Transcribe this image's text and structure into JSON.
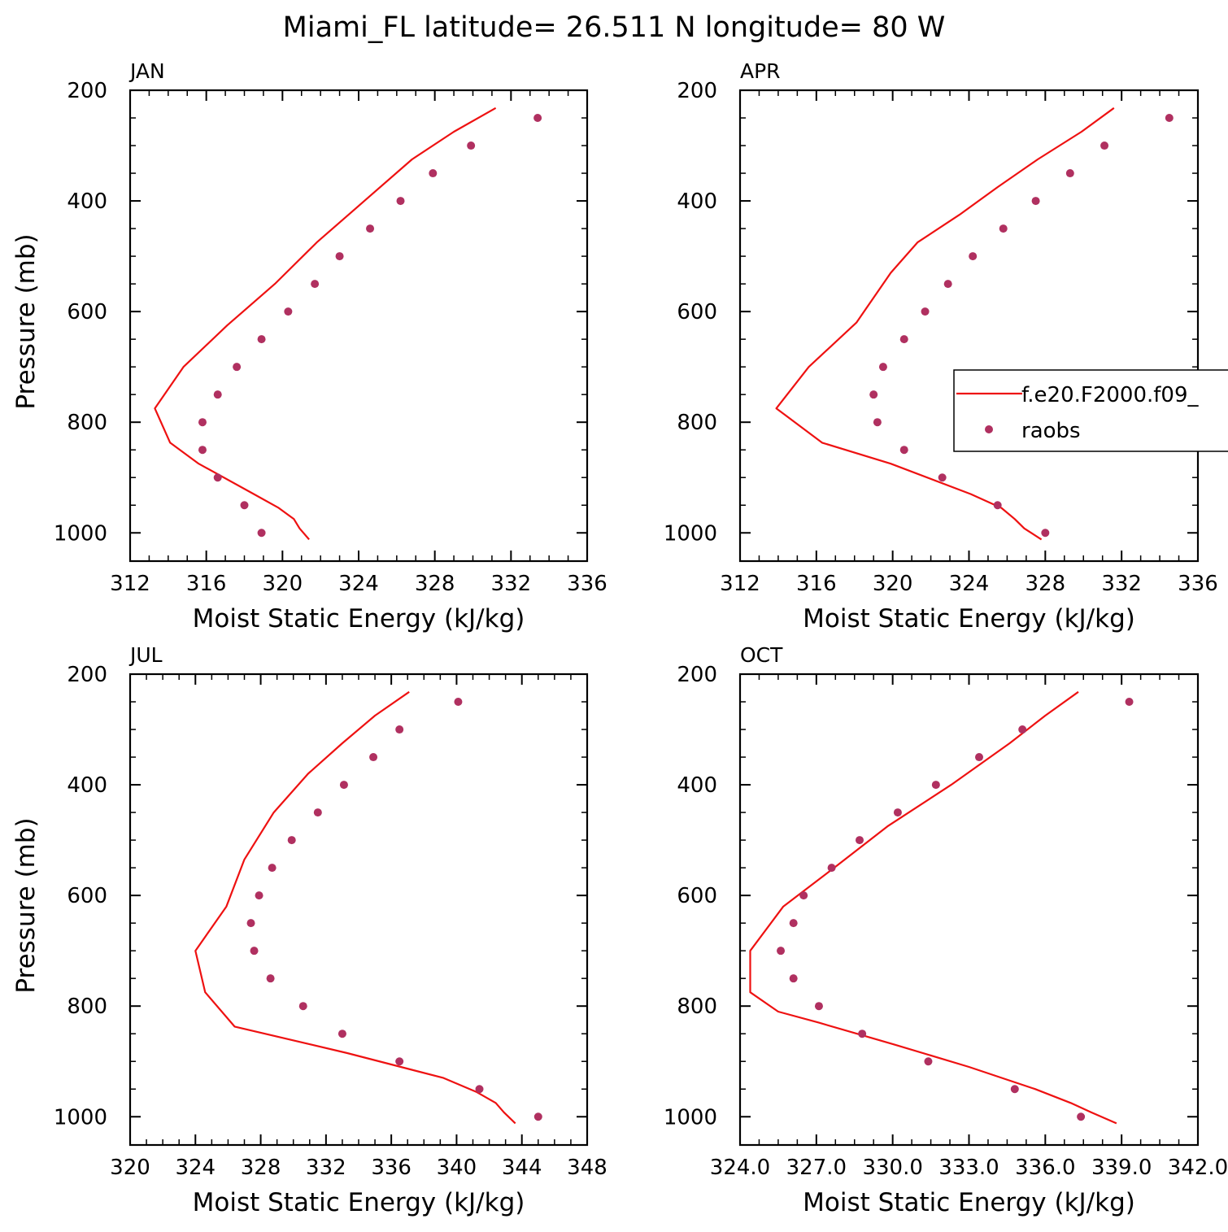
{
  "figure": {
    "title": "Miami_FL  latitude= 26.511 N longitude= 80 W"
  },
  "legend": {
    "model_label": "f.e20.F2000.f09_",
    "obs_label": "raobs"
  },
  "colors": {
    "model_line": "#ee1111",
    "obs_marker": "#b03060",
    "axes": "#000000"
  },
  "chart_data": [
    {
      "type": "line",
      "panel_label": "JAN",
      "xlabel": "Moist Static Energy (kJ/kg)",
      "ylabel": "Pressure (mb)",
      "xlim": [
        312,
        336
      ],
      "ylim": [
        1000,
        200
      ],
      "xticks": [
        "312",
        "316",
        "320",
        "324",
        "328",
        "332",
        "336"
      ],
      "yticks": [
        "200",
        "400",
        "600",
        "800",
        "1000"
      ],
      "series": [
        {
          "name": "f.e20.F2000.f09_",
          "kind": "line",
          "points": [
            [
              331.2,
              232
            ],
            [
              329.0,
              275
            ],
            [
              326.8,
              325
            ],
            [
              324.3,
              400
            ],
            [
              321.8,
              475
            ],
            [
              319.6,
              550
            ],
            [
              317.1,
              625
            ],
            [
              314.8,
              700
            ],
            [
              313.3,
              775
            ],
            [
              314.1,
              837
            ],
            [
              315.6,
              875
            ],
            [
              318.5,
              930
            ],
            [
              319.8,
              955
            ],
            [
              320.6,
              975
            ],
            [
              320.9,
              992
            ],
            [
              321.4,
              1012
            ]
          ]
        },
        {
          "name": "raobs",
          "kind": "scatter",
          "points": [
            [
              333.4,
              250
            ],
            [
              329.9,
              300
            ],
            [
              327.9,
              350
            ],
            [
              326.2,
              400
            ],
            [
              324.6,
              450
            ],
            [
              323.0,
              500
            ],
            [
              321.7,
              550
            ],
            [
              320.3,
              600
            ],
            [
              318.9,
              650
            ],
            [
              317.6,
              700
            ],
            [
              316.6,
              750
            ],
            [
              315.8,
              800
            ],
            [
              315.8,
              850
            ],
            [
              316.6,
              900
            ],
            [
              318.0,
              950
            ],
            [
              318.9,
              1000
            ]
          ]
        }
      ]
    },
    {
      "type": "line",
      "panel_label": "APR",
      "xlabel": "Moist Static Energy (kJ/kg)",
      "ylabel": "",
      "xlim": [
        312,
        336
      ],
      "ylim": [
        1000,
        200
      ],
      "xticks": [
        "312",
        "316",
        "320",
        "324",
        "328",
        "332",
        "336"
      ],
      "yticks": [
        "200",
        "400",
        "600",
        "800",
        "1000"
      ],
      "series": [
        {
          "name": "f.e20.F2000.f09_",
          "kind": "line",
          "points": [
            [
              331.6,
              232
            ],
            [
              329.9,
              275
            ],
            [
              327.6,
              325
            ],
            [
              325.5,
              375
            ],
            [
              323.5,
              425
            ],
            [
              321.3,
              475
            ],
            [
              319.9,
              530
            ],
            [
              318.1,
              620
            ],
            [
              315.6,
              700
            ],
            [
              313.9,
              775
            ],
            [
              316.3,
              837
            ],
            [
              319.9,
              875
            ],
            [
              324.1,
              930
            ],
            [
              325.7,
              955
            ],
            [
              326.4,
              975
            ],
            [
              326.9,
              992
            ],
            [
              327.8,
              1012
            ]
          ]
        },
        {
          "name": "raobs",
          "kind": "scatter",
          "points": [
            [
              334.5,
              250
            ],
            [
              331.1,
              300
            ],
            [
              329.3,
              350
            ],
            [
              327.5,
              400
            ],
            [
              325.8,
              450
            ],
            [
              324.2,
              500
            ],
            [
              322.9,
              550
            ],
            [
              321.7,
              600
            ],
            [
              320.6,
              650
            ],
            [
              319.5,
              700
            ],
            [
              319.0,
              750
            ],
            [
              319.2,
              800
            ],
            [
              320.6,
              850
            ],
            [
              322.6,
              900
            ],
            [
              325.5,
              950
            ],
            [
              328.0,
              1000
            ]
          ]
        }
      ]
    },
    {
      "type": "line",
      "panel_label": "JUL",
      "xlabel": "Moist Static Energy (kJ/kg)",
      "ylabel": "Pressure (mb)",
      "xlim": [
        320,
        348
      ],
      "ylim": [
        1000,
        200
      ],
      "xticks": [
        "320",
        "324",
        "328",
        "332",
        "336",
        "340",
        "344",
        "348"
      ],
      "yticks": [
        "200",
        "400",
        "600",
        "800",
        "1000"
      ],
      "series": [
        {
          "name": "f.e20.F2000.f09_",
          "kind": "line",
          "points": [
            [
              337.1,
              232
            ],
            [
              335.0,
              275
            ],
            [
              333.0,
              325
            ],
            [
              330.9,
              380
            ],
            [
              328.8,
              450
            ],
            [
              327.0,
              535
            ],
            [
              325.9,
              620
            ],
            [
              324.0,
              700
            ],
            [
              324.6,
              775
            ],
            [
              326.4,
              837
            ],
            [
              333.3,
              885
            ],
            [
              339.2,
              930
            ],
            [
              341.2,
              955
            ],
            [
              342.4,
              975
            ],
            [
              342.9,
              992
            ],
            [
              343.6,
              1012
            ]
          ]
        },
        {
          "name": "raobs",
          "kind": "scatter",
          "points": [
            [
              340.1,
              250
            ],
            [
              336.5,
              300
            ],
            [
              334.9,
              350
            ],
            [
              333.1,
              400
            ],
            [
              331.5,
              450
            ],
            [
              329.9,
              500
            ],
            [
              328.7,
              550
            ],
            [
              327.9,
              600
            ],
            [
              327.4,
              650
            ],
            [
              327.6,
              700
            ],
            [
              328.6,
              750
            ],
            [
              330.6,
              800
            ],
            [
              333.0,
              850
            ],
            [
              336.5,
              900
            ],
            [
              341.4,
              950
            ],
            [
              345.0,
              1000
            ]
          ]
        }
      ]
    },
    {
      "type": "line",
      "panel_label": "OCT",
      "xlabel": "Moist Static Energy (kJ/kg)",
      "ylabel": "",
      "xlim": [
        324,
        342
      ],
      "ylim": [
        1000,
        200
      ],
      "xticks": [
        "324.0",
        "327.0",
        "330.0",
        "333.0",
        "336.0",
        "339.0",
        "342.0"
      ],
      "yticks": [
        "200",
        "400",
        "600",
        "800",
        "1000"
      ],
      "series": [
        {
          "name": "f.e20.F2000.f09_",
          "kind": "line",
          "points": [
            [
              337.3,
              232
            ],
            [
              336.0,
              275
            ],
            [
              334.6,
              325
            ],
            [
              332.3,
              400
            ],
            [
              329.8,
              475
            ],
            [
              327.7,
              550
            ],
            [
              325.7,
              620
            ],
            [
              324.4,
              700
            ],
            [
              324.4,
              775
            ],
            [
              325.5,
              810
            ],
            [
              327.1,
              830
            ],
            [
              330.1,
              870
            ],
            [
              333.0,
              910
            ],
            [
              335.6,
              950
            ],
            [
              337.0,
              975
            ],
            [
              337.8,
              992
            ],
            [
              338.8,
              1012
            ]
          ]
        },
        {
          "name": "raobs",
          "kind": "scatter",
          "points": [
            [
              339.3,
              250
            ],
            [
              335.1,
              300
            ],
            [
              333.4,
              350
            ],
            [
              331.7,
              400
            ],
            [
              330.2,
              450
            ],
            [
              328.7,
              500
            ],
            [
              327.6,
              550
            ],
            [
              326.5,
              600
            ],
            [
              326.1,
              650
            ],
            [
              325.6,
              700
            ],
            [
              326.1,
              750
            ],
            [
              327.1,
              800
            ],
            [
              328.8,
              850
            ],
            [
              331.4,
              900
            ],
            [
              334.8,
              950
            ],
            [
              337.4,
              1000
            ]
          ]
        }
      ]
    }
  ]
}
